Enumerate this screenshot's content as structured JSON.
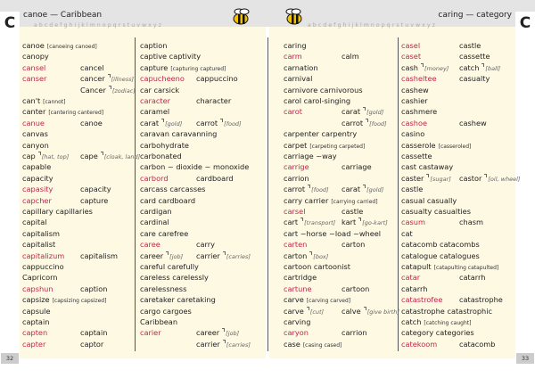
{
  "header": {
    "letter_left": "C",
    "letter_right": "C",
    "left_guide": "canoe — Caribbean",
    "right_guide": "caring — category",
    "alphabet": "abcdefghijklmnopqrstuvwxyz"
  },
  "columns": [
    [
      {
        "word": "canoe",
        "forms": "[canoeing canoed]"
      },
      {
        "word": "canopy"
      },
      {
        "word": "cansel",
        "misspelling": true,
        "alt": "cancel"
      },
      {
        "word": "canser",
        "misspelling": true,
        "alt": "cancer",
        "alt_note": "[illness]"
      },
      {
        "alt": "Cancer",
        "alt_note": "[zodiac]"
      },
      {
        "word": "can't",
        "forms": "[cannot]"
      },
      {
        "word": "canter",
        "forms": "[cantering cantered]"
      },
      {
        "word": "canue",
        "misspelling": true,
        "alt": "canoe"
      },
      {
        "word": "canvas"
      },
      {
        "word": "canyon"
      },
      {
        "word": "cap",
        "note": "[hat, top]",
        "alt": "cape",
        "alt_note": "[cloak, land]"
      },
      {
        "word": "capable"
      },
      {
        "word": "capacity"
      },
      {
        "word": "capasity",
        "misspelling": true,
        "alt": "capacity"
      },
      {
        "word": "capcher",
        "misspelling": true,
        "alt": "capture"
      },
      {
        "word": "capillary capillaries"
      },
      {
        "word": "capital"
      },
      {
        "word": "capitalism"
      },
      {
        "word": "capitalist"
      },
      {
        "word": "capitalizum",
        "misspelling": true,
        "alt": "capitalism"
      },
      {
        "word": "cappuccino"
      },
      {
        "word": "Capricorn"
      },
      {
        "word": "capshun",
        "misspelling": true,
        "alt": "caption"
      },
      {
        "word": "capsize",
        "forms": "[capsizing capsized]"
      },
      {
        "word": "capsule"
      },
      {
        "word": "captain"
      },
      {
        "word": "capten",
        "misspelling": true,
        "alt": "captain"
      },
      {
        "word": "capter",
        "misspelling": true,
        "alt": "captor"
      }
    ],
    [
      {
        "word": "caption"
      },
      {
        "word": "captive captivity"
      },
      {
        "word": "capture",
        "forms": "[capturing captured]"
      },
      {
        "word": "capucheeno",
        "misspelling": true,
        "alt": "cappuccino"
      },
      {
        "word": "car carsick"
      },
      {
        "word": "caracter",
        "misspelling": true,
        "alt": "character"
      },
      {
        "word": "caramel"
      },
      {
        "word": "carat",
        "note": "[gold]",
        "alt": "carrot",
        "alt_note": "[food]"
      },
      {
        "word": "caravan caravanning"
      },
      {
        "word": "carbohydrate"
      },
      {
        "word": "carbonated"
      },
      {
        "word": "carbon ~ dioxide ~ monoxide"
      },
      {
        "word": "carbord",
        "misspelling": true,
        "alt": "cardboard"
      },
      {
        "word": "carcass carcasses"
      },
      {
        "word": "card cardboard"
      },
      {
        "word": "cardigan"
      },
      {
        "word": "cardinal"
      },
      {
        "word": "care carefree"
      },
      {
        "word": "caree",
        "misspelling": true,
        "alt": "carry"
      },
      {
        "word": "career",
        "note": "[job]",
        "alt": "carrier",
        "alt_note": "[carries]"
      },
      {
        "word": "careful carefully"
      },
      {
        "word": "careless carelessly"
      },
      {
        "word": "carelessness"
      },
      {
        "word": "caretaker caretaking"
      },
      {
        "word": "cargo cargoes"
      },
      {
        "word": "Caribbean"
      },
      {
        "word": "carier",
        "misspelling": true,
        "alt": "career",
        "alt_note": "[job]"
      },
      {
        "alt": "carrier",
        "alt_note": "[carries]"
      }
    ],
    [
      {
        "word": "caring"
      },
      {
        "word": "carm",
        "misspelling": true,
        "alt": "calm"
      },
      {
        "word": "carnation"
      },
      {
        "word": "carnival"
      },
      {
        "word": "carnivore carnivorous"
      },
      {
        "word": "carol carol-singing"
      },
      {
        "word": "carot",
        "misspelling": true,
        "alt": "carat",
        "alt_note": "[gold]"
      },
      {
        "alt": "carrot",
        "alt_note": "[food]"
      },
      {
        "word": "carpenter carpentry"
      },
      {
        "word": "carpet",
        "forms": "[carpeting carpeted]"
      },
      {
        "word": "carriage ~way"
      },
      {
        "word": "carrige",
        "misspelling": true,
        "alt": "carriage"
      },
      {
        "word": "carrion"
      },
      {
        "word": "carrot",
        "note": "[food]",
        "alt": "carat",
        "alt_note": "[gold]"
      },
      {
        "word": "carry carrier",
        "forms": "[carrying carried]"
      },
      {
        "word": "carsel",
        "misspelling": true,
        "alt": "castle"
      },
      {
        "word": "cart",
        "note": "[transport]",
        "alt": "kart",
        "alt_note": "[go-kart]"
      },
      {
        "word": "cart ~horse ~load ~wheel"
      },
      {
        "word": "carten",
        "misspelling": true,
        "alt": "carton"
      },
      {
        "word": "carton",
        "note": "[box]"
      },
      {
        "word": "cartoon cartoonist"
      },
      {
        "word": "cartridge"
      },
      {
        "word": "cartune",
        "misspelling": true,
        "alt": "cartoon"
      },
      {
        "word": "carve",
        "forms": "[carving carved]"
      },
      {
        "word": "carve",
        "note": "[cut]",
        "alt": "calve",
        "alt_note": "[give birth]"
      },
      {
        "word": "carving"
      },
      {
        "word": "caryon",
        "misspelling": true,
        "alt": "carrion"
      },
      {
        "word": "case",
        "forms": "[casing cased]"
      }
    ],
    [
      {
        "word": "casel",
        "misspelling": true,
        "alt": "castle"
      },
      {
        "word": "caset",
        "misspelling": true,
        "alt": "cassette"
      },
      {
        "word": "cash",
        "note": "[money]",
        "alt": "catch",
        "alt_note": "[ball]"
      },
      {
        "word": "casheltee",
        "misspelling": true,
        "alt": "casualty"
      },
      {
        "word": "cashew"
      },
      {
        "word": "cashier"
      },
      {
        "word": "cashmere"
      },
      {
        "word": "cashoe",
        "misspelling": true,
        "alt": "cashew"
      },
      {
        "word": "casino"
      },
      {
        "word": "casserole",
        "forms": "[casseroled]"
      },
      {
        "word": "cassette"
      },
      {
        "word": "cast castaway"
      },
      {
        "word": "caster",
        "note": "[sugar]",
        "alt": "castor",
        "alt_note": "[oil, wheel]"
      },
      {
        "word": "castle"
      },
      {
        "word": "casual casually"
      },
      {
        "word": "casualty casualties"
      },
      {
        "word": "casum",
        "misspelling": true,
        "alt": "chasm"
      },
      {
        "word": "cat"
      },
      {
        "word": "catacomb catacombs"
      },
      {
        "word": "catalogue catalogues"
      },
      {
        "word": "catapult",
        "forms": "[catapulting catapulted]"
      },
      {
        "word": "catar",
        "misspelling": true,
        "alt": "catarrh"
      },
      {
        "word": "catarrh"
      },
      {
        "word": "catastrofee",
        "misspelling": true,
        "alt": "catastrophe"
      },
      {
        "word": "catastrophe catastrophic"
      },
      {
        "word": "catch",
        "forms": "[catching caught]"
      },
      {
        "word": "category categories"
      },
      {
        "word": "catekoom",
        "misspelling": true,
        "alt": "catacomb"
      }
    ]
  ],
  "footer": {
    "page_left": "32",
    "page_right": "33"
  }
}
